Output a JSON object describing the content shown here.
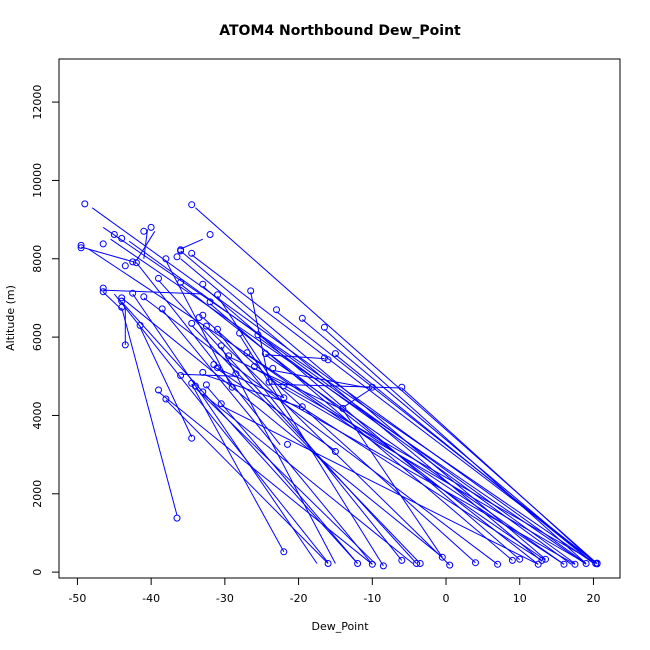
{
  "chart_data": {
    "type": "scatter",
    "title": "ATOM4 Northbound Dew_Point",
    "xlabel": "Dew_Point",
    "ylabel": "Altitude (m)",
    "xlim": [
      -52.5,
      23.6
    ],
    "ylim": [
      -150,
      13100
    ],
    "x_ticks": [
      -50,
      -40,
      -30,
      -20,
      -10,
      0,
      10,
      20
    ],
    "y_ticks": [
      0,
      2000,
      4000,
      6000,
      8000,
      10000,
      12000
    ],
    "color": "#0000ff",
    "grid": false,
    "points": [
      [
        -49,
        9400
      ],
      [
        -34.5,
        9380
      ],
      [
        -40,
        8800
      ],
      [
        -41,
        8700
      ],
      [
        -45,
        8620
      ],
      [
        -44,
        8520
      ],
      [
        -32,
        8620
      ],
      [
        -46.5,
        8380
      ],
      [
        -49.5,
        8340
      ],
      [
        -49.5,
        8280
      ],
      [
        -36,
        8230
      ],
      [
        -36,
        8200
      ],
      [
        -34.5,
        8140
      ],
      [
        -36.5,
        8050
      ],
      [
        -38,
        8000
      ],
      [
        -42.5,
        7920
      ],
      [
        -42,
        7900
      ],
      [
        -43.5,
        7820
      ],
      [
        -39,
        7500
      ],
      [
        -46.5,
        7250
      ],
      [
        -46.5,
        7160
      ],
      [
        -36,
        7400
      ],
      [
        -33,
        7350
      ],
      [
        -26.5,
        7180
      ],
      [
        -31,
        7080
      ],
      [
        -42.5,
        7120
      ],
      [
        -41,
        7030
      ],
      [
        -44,
        7000
      ],
      [
        -44,
        6920
      ],
      [
        -44,
        6760
      ],
      [
        -38.5,
        6720
      ],
      [
        -32,
        6900
      ],
      [
        -23,
        6700
      ],
      [
        -33,
        6560
      ],
      [
        -33.5,
        6500
      ],
      [
        -19.5,
        6480
      ],
      [
        -34.5,
        6350
      ],
      [
        -32.5,
        6280
      ],
      [
        -41.5,
        6300
      ],
      [
        -31,
        6200
      ],
      [
        -16.5,
        6250
      ],
      [
        -28,
        6100
      ],
      [
        -25.5,
        6060
      ],
      [
        -43.5,
        5800
      ],
      [
        -30.5,
        5780
      ],
      [
        -27,
        5600
      ],
      [
        -24.5,
        5580
      ],
      [
        -15,
        5580
      ],
      [
        -29.5,
        5520
      ],
      [
        -16.5,
        5470
      ],
      [
        -16,
        5420
      ],
      [
        -31.5,
        5300
      ],
      [
        -26,
        5250
      ],
      [
        -31,
        5220
      ],
      [
        -23.5,
        5200
      ],
      [
        -33,
        5100
      ],
      [
        -28.5,
        5060
      ],
      [
        -36,
        5020
      ],
      [
        -24,
        4850
      ],
      [
        -34.5,
        4820
      ],
      [
        -32.5,
        4780
      ],
      [
        -22,
        4760
      ],
      [
        -34,
        4750
      ],
      [
        -29,
        4720
      ],
      [
        -10,
        4720
      ],
      [
        -6,
        4720
      ],
      [
        -39,
        4650
      ],
      [
        -33,
        4600
      ],
      [
        -22,
        4450
      ],
      [
        -38,
        4420
      ],
      [
        -30.5,
        4300
      ],
      [
        -19.5,
        4220
      ],
      [
        -14,
        4180
      ],
      [
        -34.5,
        3420
      ],
      [
        -21.5,
        3260
      ],
      [
        -15,
        3080
      ],
      [
        -36.5,
        1380
      ],
      [
        -22,
        520
      ],
      [
        -16,
        220
      ],
      [
        -12,
        220
      ],
      [
        -10,
        200
      ],
      [
        -8.5,
        160
      ],
      [
        -6,
        300
      ],
      [
        -4,
        220
      ],
      [
        -3.5,
        220
      ],
      [
        -0.5,
        380
      ],
      [
        0.5,
        180
      ],
      [
        4,
        240
      ],
      [
        7,
        200
      ],
      [
        9,
        300
      ],
      [
        10,
        330
      ],
      [
        12.5,
        200
      ],
      [
        13,
        300
      ],
      [
        13.5,
        330
      ],
      [
        16,
        200
      ],
      [
        17.5,
        200
      ],
      [
        19,
        220
      ],
      [
        20.5,
        210
      ],
      [
        20.5,
        230
      ],
      [
        20.3,
        220
      ]
    ],
    "segments": [
      [
        [
          -48,
          9300
        ],
        [
          19,
          220
        ]
      ],
      [
        [
          -34,
          9300
        ],
        [
          20.5,
          220
        ]
      ],
      [
        [
          -46.5,
          8800
        ],
        [
          20,
          230
        ]
      ],
      [
        [
          -45.5,
          8500
        ],
        [
          19,
          200
        ]
      ],
      [
        [
          -43,
          8450
        ],
        [
          17.5,
          220
        ]
      ],
      [
        [
          -39.5,
          8700
        ],
        [
          -42,
          7950
        ]
      ],
      [
        [
          -40.5,
          8750
        ],
        [
          -41,
          8000
        ]
      ],
      [
        [
          -33,
          8500
        ],
        [
          -36,
          8250
        ]
      ],
      [
        [
          -49.5,
          8300
        ],
        [
          -42,
          7900
        ]
      ],
      [
        [
          -48.5,
          8250
        ],
        [
          16,
          200
        ]
      ],
      [
        [
          -36,
          8200
        ],
        [
          13.5,
          330
        ]
      ],
      [
        [
          -34.5,
          8100
        ],
        [
          20.5,
          220
        ]
      ],
      [
        [
          -36,
          8000
        ],
        [
          13,
          280
        ]
      ],
      [
        [
          -38,
          7950
        ],
        [
          -29,
          4700
        ]
      ],
      [
        [
          -42,
          7900
        ],
        [
          -22.5,
          3250
        ]
      ],
      [
        [
          -39,
          7450
        ],
        [
          -4,
          220
        ]
      ],
      [
        [
          -46.5,
          7200
        ],
        [
          -33,
          7100
        ]
      ],
      [
        [
          -46.5,
          7150
        ],
        [
          -44,
          6700
        ]
      ],
      [
        [
          -45,
          7100
        ],
        [
          -16,
          240
        ]
      ],
      [
        [
          -36,
          7350
        ],
        [
          12.5,
          200
        ]
      ],
      [
        [
          -33,
          7300
        ],
        [
          10,
          320
        ]
      ],
      [
        [
          -26.5,
          7150
        ],
        [
          -24,
          4850
        ]
      ],
      [
        [
          -31,
          7050
        ],
        [
          -22,
          4450
        ]
      ],
      [
        [
          -42.5,
          7100
        ],
        [
          -17.5,
          220
        ]
      ],
      [
        [
          -41,
          7000
        ],
        [
          7,
          200
        ]
      ],
      [
        [
          -44,
          7000
        ],
        [
          -0.5,
          380
        ]
      ],
      [
        [
          -44,
          6900
        ],
        [
          -12,
          220
        ]
      ],
      [
        [
          -44,
          6750
        ],
        [
          -36.5,
          1450
        ]
      ],
      [
        [
          -38.5,
          6700
        ],
        [
          -10,
          200
        ]
      ],
      [
        [
          -32,
          6850
        ],
        [
          9,
          300
        ]
      ],
      [
        [
          -23,
          6650
        ],
        [
          20.5,
          210
        ]
      ],
      [
        [
          -33,
          6500
        ],
        [
          4,
          240
        ]
      ],
      [
        [
          -19.5,
          6450
        ],
        [
          20,
          230
        ]
      ],
      [
        [
          -34.5,
          6300
        ],
        [
          -3.5,
          220
        ]
      ],
      [
        [
          -32.5,
          6250
        ],
        [
          0.5,
          180
        ]
      ],
      [
        [
          -41.5,
          6250
        ],
        [
          -34.5,
          3450
        ]
      ],
      [
        [
          -31,
          6150
        ],
        [
          -6,
          300
        ]
      ],
      [
        [
          -16.5,
          6200
        ],
        [
          19,
          220
        ]
      ],
      [
        [
          -28,
          6050
        ],
        [
          -8.5,
          160
        ]
      ],
      [
        [
          -25.5,
          6000
        ],
        [
          17,
          200
        ]
      ],
      [
        [
          -43.5,
          5800
        ],
        [
          -43.5,
          6750
        ]
      ],
      [
        [
          -30.5,
          5750
        ],
        [
          -15,
          220
        ]
      ],
      [
        [
          -27,
          5550
        ],
        [
          13.5,
          300
        ]
      ],
      [
        [
          -24.5,
          5550
        ],
        [
          16,
          200
        ]
      ],
      [
        [
          -15,
          5550
        ],
        [
          20,
          220
        ]
      ],
      [
        [
          -29.5,
          5500
        ],
        [
          -14,
          4150
        ]
      ],
      [
        [
          -16.5,
          5450
        ],
        [
          -24.5,
          5550
        ]
      ],
      [
        [
          -31.5,
          5250
        ],
        [
          -15,
          3100
        ]
      ],
      [
        [
          -26,
          5200
        ],
        [
          20.5,
          220
        ]
      ],
      [
        [
          -31,
          5200
        ],
        [
          -22,
          4450
        ]
      ],
      [
        [
          -23.5,
          5150
        ],
        [
          -10.5,
          4700
        ]
      ],
      [
        [
          -33,
          5050
        ],
        [
          -19.5,
          4200
        ]
      ],
      [
        [
          -28.5,
          5000
        ],
        [
          -36,
          5050
        ]
      ],
      [
        [
          -24,
          4800
        ],
        [
          -6,
          4700
        ]
      ],
      [
        [
          -34.5,
          4800
        ],
        [
          -22,
          520
        ]
      ],
      [
        [
          -32.5,
          4750
        ],
        [
          -12,
          220
        ]
      ],
      [
        [
          -22,
          4700
        ],
        [
          19,
          220
        ]
      ],
      [
        [
          -34,
          4700
        ],
        [
          -9.5,
          200
        ]
      ],
      [
        [
          -10,
          4700
        ],
        [
          -14,
          4200
        ]
      ],
      [
        [
          -6,
          4700
        ],
        [
          20.3,
          220
        ]
      ],
      [
        [
          -39,
          4600
        ],
        [
          -10,
          200
        ]
      ],
      [
        [
          -33,
          4550
        ],
        [
          -4.5,
          220
        ]
      ],
      [
        [
          -22,
          4400
        ],
        [
          17.5,
          200
        ]
      ],
      [
        [
          -38,
          4400
        ],
        [
          -16,
          220
        ]
      ],
      [
        [
          -30.5,
          4250
        ],
        [
          12.5,
          200
        ]
      ],
      [
        [
          -19.5,
          4200
        ],
        [
          13,
          300
        ]
      ],
      [
        [
          -14,
          4150
        ],
        [
          -0.5,
          380
        ]
      ]
    ]
  }
}
